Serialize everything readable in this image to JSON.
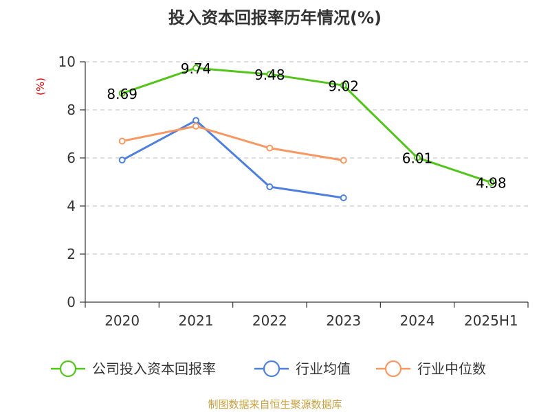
{
  "chart_data": {
    "type": "line",
    "title": "投入资本回报率历年情况(%)",
    "ylabel": "(%)",
    "xlabel": "",
    "categories": [
      "2020",
      "2021",
      "2022",
      "2023",
      "2024",
      "2025H1"
    ],
    "ylim": [
      0,
      10
    ],
    "yticks": [
      "0",
      "2",
      "4",
      "6",
      "8",
      "10"
    ],
    "grid": true,
    "legend_position": "bottom",
    "series": [
      {
        "name": "公司投入资本回报率",
        "color": "#52c41a",
        "values": [
          8.69,
          9.74,
          9.48,
          9.02,
          6.01,
          4.98
        ],
        "labels": [
          "8.69",
          "9.74",
          "9.48",
          "9.02",
          "6.01",
          "4.98"
        ]
      },
      {
        "name": "行业均值",
        "color": "#4e7fdc",
        "values": [
          5.91,
          7.56,
          4.8,
          4.34,
          null,
          null
        ]
      },
      {
        "name": "行业中位数",
        "color": "#f79862",
        "values": [
          6.7,
          7.32,
          6.41,
          5.9,
          null,
          null
        ]
      }
    ]
  },
  "footer": {
    "source": "制图数据来自恒生聚源数据库",
    "color": "#c8a040"
  }
}
